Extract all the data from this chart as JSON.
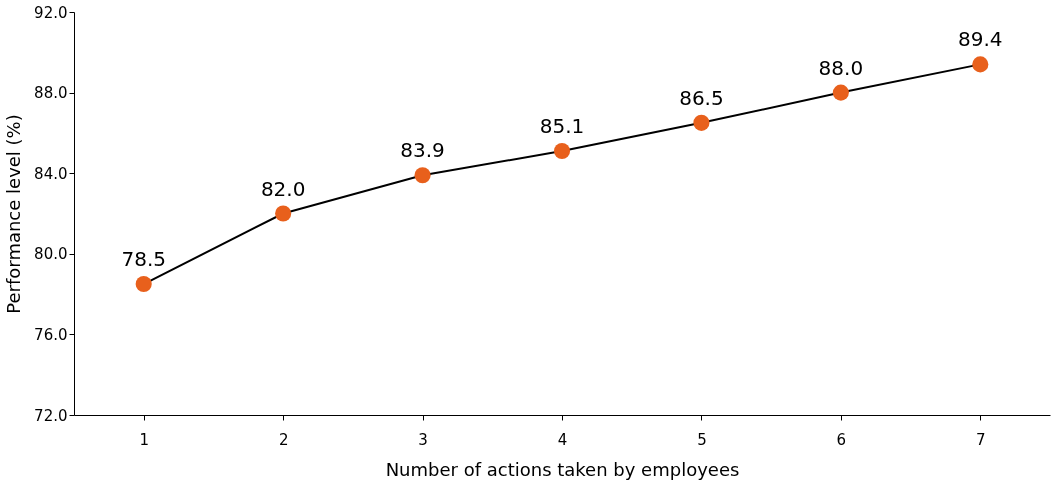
{
  "chart_data": {
    "type": "line",
    "xlabel": "Number of actions taken by employees",
    "ylabel": "Performance level (%)",
    "categories": [
      "1",
      "2",
      "3",
      "4",
      "5",
      "6",
      "7"
    ],
    "series": [
      {
        "color": "#e8601c",
        "values": [
          78.5,
          82.0,
          83.9,
          85.1,
          86.5,
          88.0,
          89.4
        ],
        "value_labels": [
          "78.5",
          "82.0",
          "83.9",
          "85.1",
          "86.5",
          "88.0",
          "89.4"
        ]
      }
    ],
    "ylim": [
      72,
      92
    ],
    "yticks": [
      {
        "value": 72,
        "label": "72.0"
      },
      {
        "value": 76,
        "label": "76.0"
      },
      {
        "value": 80,
        "label": "80.0"
      },
      {
        "value": 84,
        "label": "84.0"
      },
      {
        "value": 88,
        "label": "88.0"
      },
      {
        "value": 92,
        "label": "92.0"
      }
    ],
    "marker": "circle",
    "line_style": "solid",
    "grid": false
  }
}
